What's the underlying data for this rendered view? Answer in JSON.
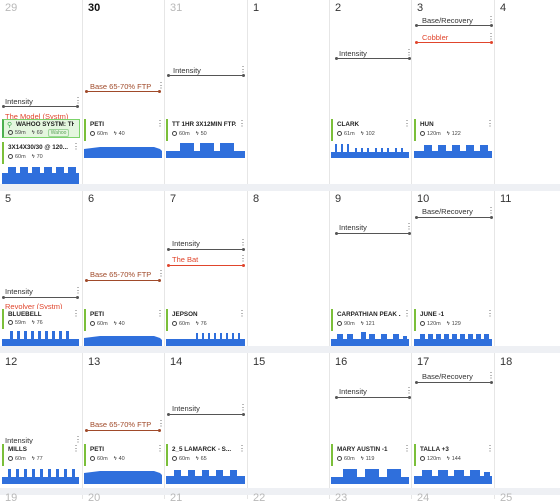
{
  "days": {
    "r0": [
      "29",
      "30",
      "31",
      "1",
      "2",
      "3",
      "4"
    ],
    "r1": [
      "5",
      "6",
      "7",
      "8",
      "9",
      "10",
      "11"
    ],
    "r2": [
      "12",
      "13",
      "14",
      "15",
      "16",
      "17",
      "18"
    ],
    "r3": [
      "19",
      "20",
      "21",
      "22",
      "23",
      "24",
      "25"
    ]
  },
  "labels": {
    "intensity": "Intensity",
    "base_ftp": "Base 65-70% FTP",
    "base_recovery": "Base/Recovery",
    "cobbler": "Cobbler",
    "the_bat": "The Bat",
    "revolver": "Revolver (Systm)",
    "model": "The Model (Systm)"
  },
  "cards": {
    "wahoo": {
      "title": "WAHOO SYSTM: TH...",
      "time": "59m",
      "tss": "69",
      "badge": "Wahoo"
    },
    "c3x14": {
      "title": "3X14X30/30 @ 120...",
      "time": "60m",
      "tss": "70"
    },
    "peti1": {
      "title": "PETI",
      "time": "60m",
      "tss": "40"
    },
    "tt": {
      "title": "TT 1HR 3X12MIN FTP...",
      "time": "60m",
      "tss": "50"
    },
    "clark": {
      "title": "CLARK",
      "time": "61m",
      "tss": "102"
    },
    "hun": {
      "title": "HUN",
      "time": "120m",
      "tss": "122"
    },
    "bluebell": {
      "title": "BLUEBELL",
      "time": "59m",
      "tss": "76"
    },
    "peti2": {
      "title": "PETI",
      "time": "60m",
      "tss": "40"
    },
    "jepson": {
      "title": "JEPSON",
      "time": "60m",
      "tss": "76"
    },
    "carpathian": {
      "title": "CARPATHIAN PEAK ...",
      "time": "90m",
      "tss": "121"
    },
    "june": {
      "title": "JUNE -1",
      "time": "120m",
      "tss": "129"
    },
    "mills": {
      "title": "MILLS",
      "time": "60m",
      "tss": "77"
    },
    "peti3": {
      "title": "PETI",
      "time": "60m",
      "tss": "40"
    },
    "lamarck": {
      "title": "2_5 LAMARCK - S...",
      "time": "60m",
      "tss": "65"
    },
    "mary": {
      "title": "MARY AUSTIN -1",
      "time": "60m",
      "tss": "119"
    },
    "talla": {
      "title": "TALLA +3",
      "time": "120m",
      "tss": "144"
    }
  },
  "colors": {
    "chart_blue": "#2f6fdc",
    "accent_green": "#7bbf3a",
    "red": "#e0452c"
  }
}
